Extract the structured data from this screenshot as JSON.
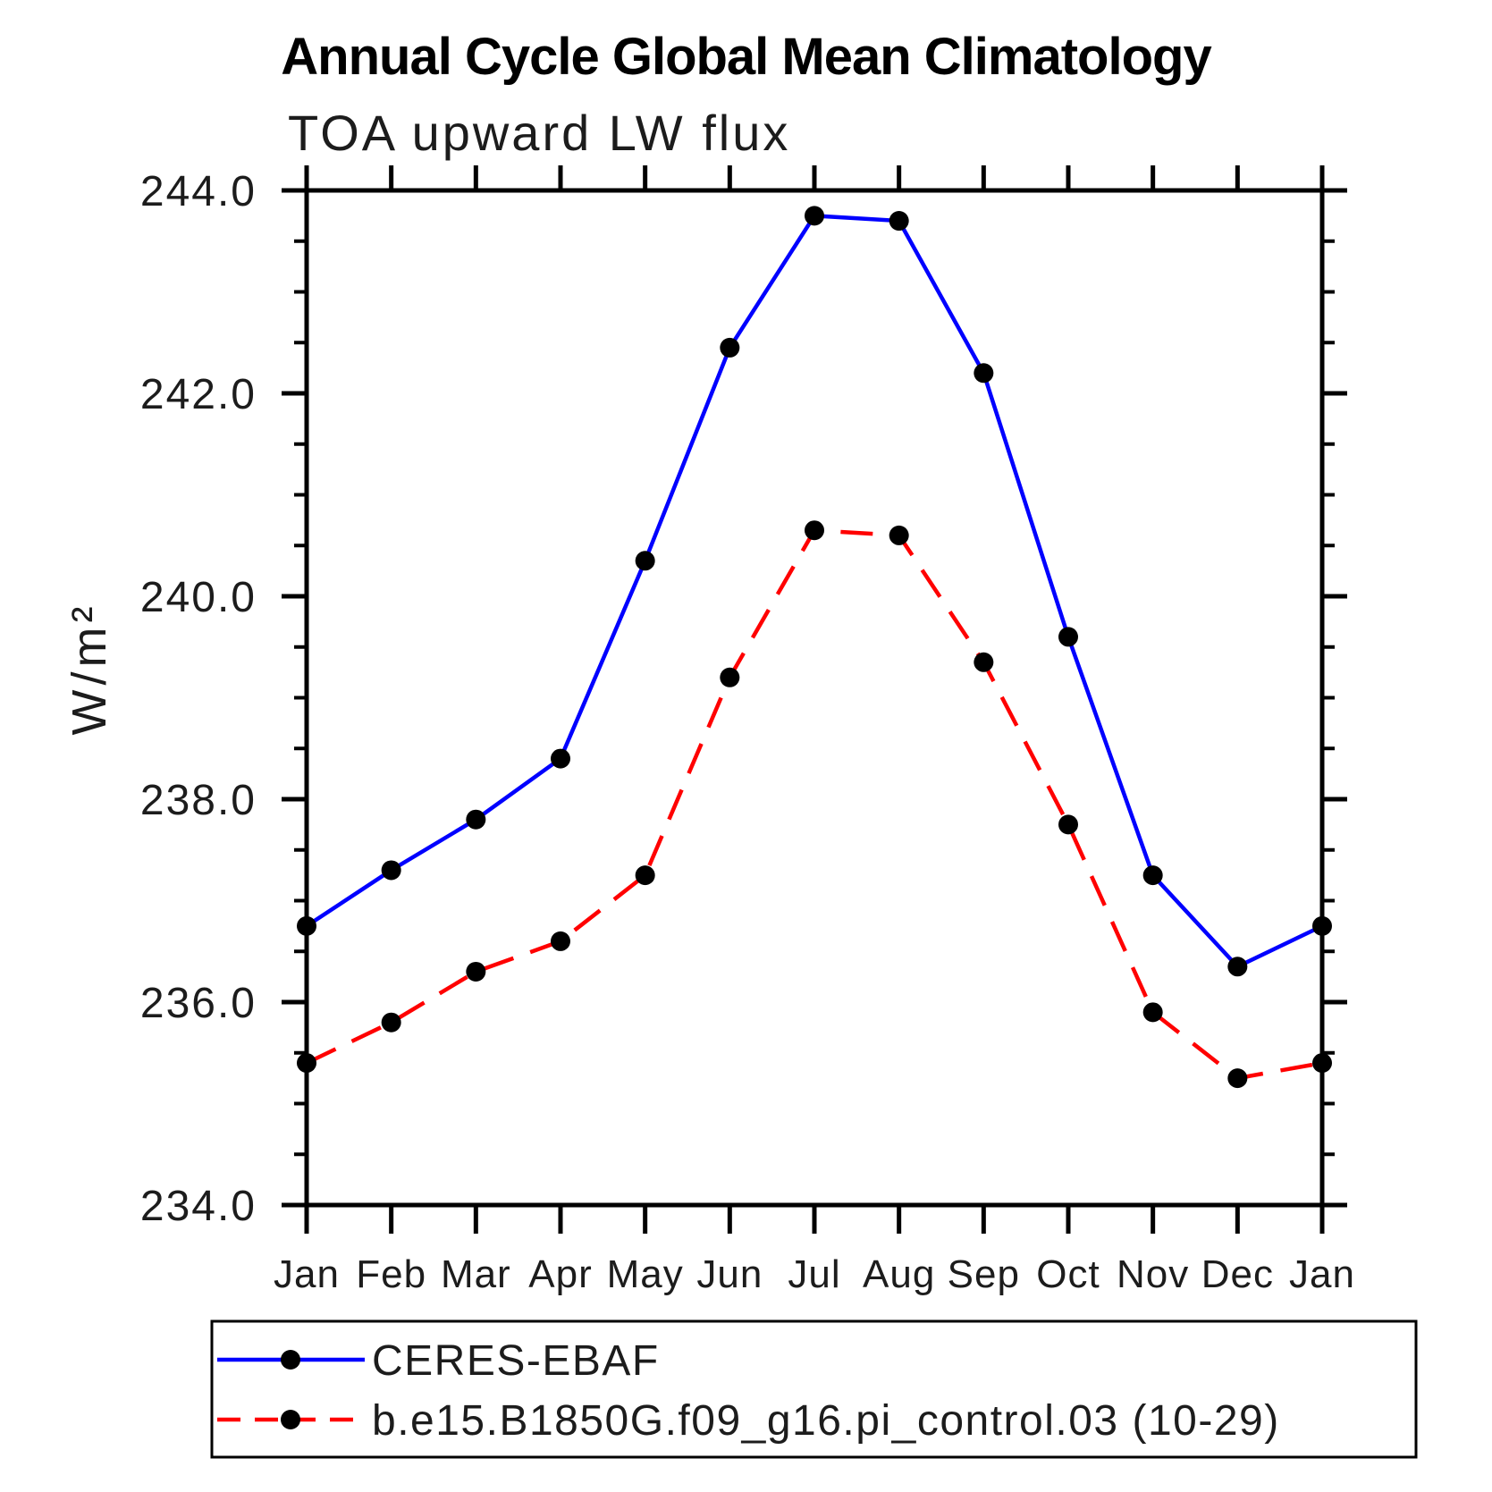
{
  "chart": {
    "title": "Annual Cycle Global Mean Climatology",
    "subtitle": "TOA upward LW flux",
    "ylabel": "W/m²"
  },
  "chart_data": {
    "type": "line",
    "title": "Annual Cycle Global Mean Climatology",
    "subtitle": "TOA upward LW flux",
    "xlabel": "",
    "ylabel": "W/m²",
    "categories": [
      "Jan",
      "Feb",
      "Mar",
      "Apr",
      "May",
      "Jun",
      "Jul",
      "Aug",
      "Sep",
      "Oct",
      "Nov",
      "Dec",
      "Jan"
    ],
    "ylim": [
      234.0,
      244.0
    ],
    "ytick_major_values": [
      234.0,
      236.0,
      238.0,
      240.0,
      242.0,
      244.0
    ],
    "ytick_major_labels": [
      "234.0",
      "236.0",
      "238.0",
      "240.0",
      "242.0",
      "244.0"
    ],
    "ytick_minor_step": 0.5,
    "grid": false,
    "legend_position": "bottom",
    "axis_color": "#000000",
    "marker_color": "#000000",
    "series": [
      {
        "name": "CERES-EBAF",
        "color": "#0000ff",
        "style": "solid",
        "marker": "circle",
        "values": [
          236.75,
          237.3,
          237.8,
          238.4,
          240.35,
          242.45,
          243.75,
          243.7,
          242.2,
          239.6,
          237.25,
          236.35,
          236.75
        ]
      },
      {
        "name": "b.e15.B1850G.f09_g16.pi_control.03 (10-29)",
        "color": "#ff0000",
        "style": "dashed",
        "marker": "circle",
        "values": [
          235.4,
          235.8,
          236.3,
          236.6,
          237.25,
          239.2,
          240.65,
          240.6,
          239.35,
          237.75,
          235.9,
          235.25,
          235.4
        ]
      }
    ]
  }
}
